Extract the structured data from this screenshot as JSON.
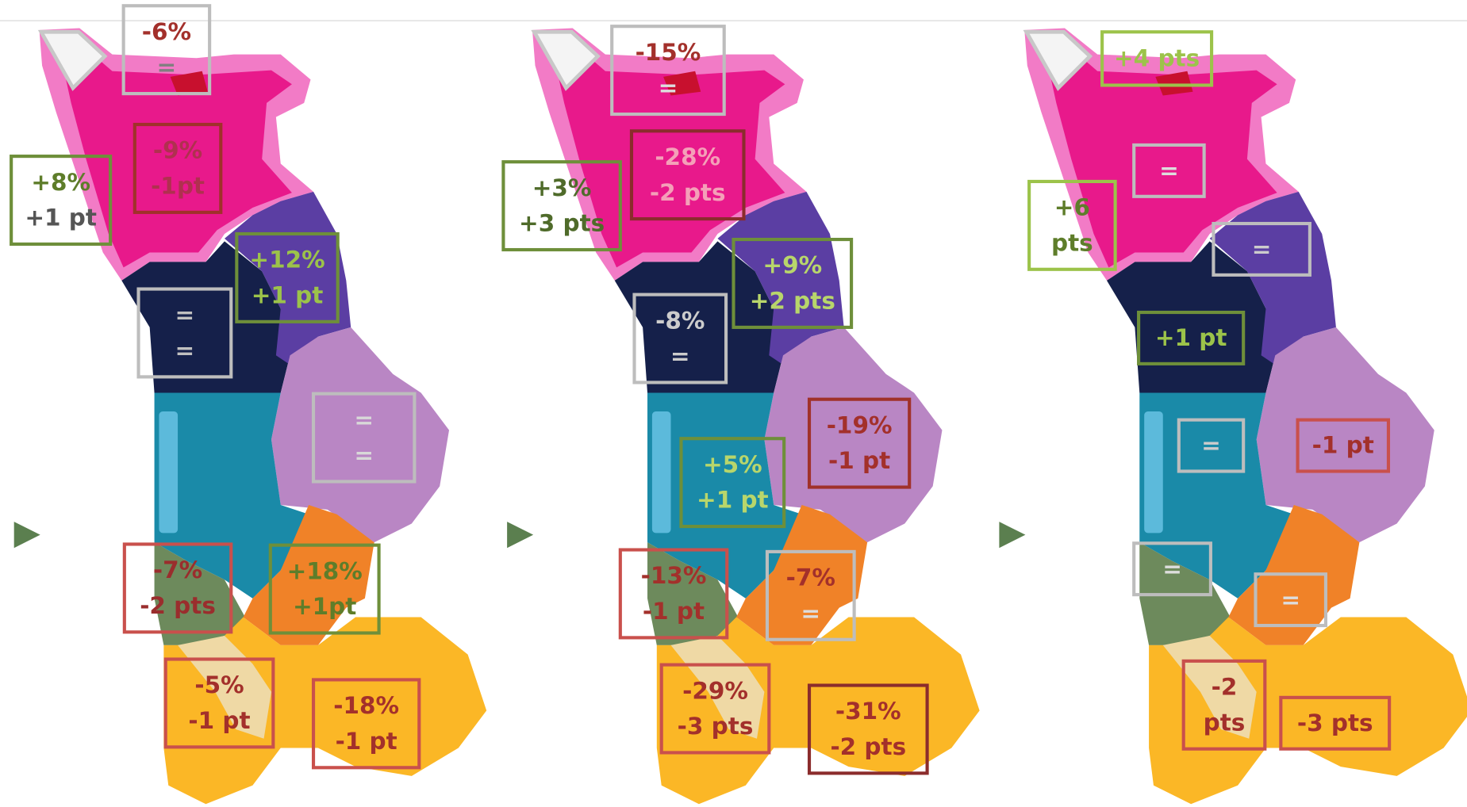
{
  "maps": [
    {
      "boxes": [
        {
          "color": "#bdbdbd",
          "lines": [
            {
              "text": "-6%",
              "color": "#a3302b"
            },
            {
              "text": "=",
              "color": "#7f7f7f"
            }
          ]
        },
        {
          "color": "#a0312a",
          "lines": [
            {
              "text": "-9%",
              "color": "#b0304f"
            },
            {
              "text": "-1pt",
              "color": "#b0304f"
            }
          ]
        },
        {
          "color": "#6e8f3a",
          "lines": [
            {
              "text": "+8%",
              "color": "#5e7d2a"
            },
            {
              "text": "+1 pt",
              "color": "#555555"
            }
          ]
        },
        {
          "color": "#6e8f3a",
          "lines": [
            {
              "text": "+12%",
              "color": "#9cc34a"
            },
            {
              "text": "+1 pt",
              "color": "#9cc34a"
            }
          ]
        },
        {
          "color": "#bdbdbd",
          "lines": [
            {
              "text": "=",
              "color": "#c0c0c0"
            },
            {
              "text": "=",
              "color": "#c0c0c0"
            }
          ]
        },
        {
          "color": "#bdbdbd",
          "lines": [
            {
              "text": "=",
              "color": "#d8d8d8"
            },
            {
              "text": "=",
              "color": "#d8d8d8"
            }
          ]
        },
        {
          "color": "#c9504c",
          "lines": [
            {
              "text": "-7%",
              "color": "#9a2d2d"
            },
            {
              "text": "-2 pts",
              "color": "#9a2d2d"
            }
          ]
        },
        {
          "color": "#6e8f3a",
          "lines": [
            {
              "text": "+18%",
              "color": "#5e7d2a"
            },
            {
              "text": "+1pt",
              "color": "#5e7d2a"
            }
          ]
        },
        {
          "color": "#c9504c",
          "lines": [
            {
              "text": "-5%",
              "color": "#a3302b"
            },
            {
              "text": "-1 pt",
              "color": "#a3302b"
            }
          ]
        },
        {
          "color": "#c9504c",
          "lines": [
            {
              "text": "-18%",
              "color": "#a3302b"
            },
            {
              "text": "-1 pt",
              "color": "#a3302b"
            }
          ]
        }
      ]
    },
    {
      "boxes": [
        {
          "color": "#bdbdbd",
          "lines": [
            {
              "text": "-15%",
              "color": "#a3302b"
            },
            {
              "text": "=",
              "color": "#dddddd"
            }
          ]
        },
        {
          "color": "#8b2c2c",
          "lines": [
            {
              "text": "-28%",
              "color": "#f4a0b8"
            },
            {
              "text": "-2 pts",
              "color": "#f4a0b8"
            }
          ]
        },
        {
          "color": "#6e8f3a",
          "lines": [
            {
              "text": "+3%",
              "color": "#4f6b2a"
            },
            {
              "text": "+3 pts",
              "color": "#4f6b2a"
            }
          ]
        },
        {
          "color": "#6e8f3a",
          "lines": [
            {
              "text": "+9%",
              "color": "#b8d66b"
            },
            {
              "text": "+2 pts",
              "color": "#b8d66b"
            }
          ]
        },
        {
          "color": "#bdbdbd",
          "lines": [
            {
              "text": "-8%",
              "color": "#cccccc"
            },
            {
              "text": "=",
              "color": "#cccccc"
            }
          ]
        },
        {
          "color": "#a0312a",
          "lines": [
            {
              "text": "-19%",
              "color": "#a3302b"
            },
            {
              "text": "-1 pt",
              "color": "#a3302b"
            }
          ]
        },
        {
          "color": "#6e8f3a",
          "lines": [
            {
              "text": "+5%",
              "color": "#b8d66b"
            },
            {
              "text": "+1 pt",
              "color": "#b8d66b"
            }
          ]
        },
        {
          "color": "#c9504c",
          "lines": [
            {
              "text": "-13%",
              "color": "#a3302b"
            },
            {
              "text": "-1 pt",
              "color": "#a3302b"
            }
          ]
        },
        {
          "color": "#bdbdbd",
          "lines": [
            {
              "text": "-7%",
              "color": "#a3302b"
            },
            {
              "text": "=",
              "color": "#dddddd"
            }
          ]
        },
        {
          "color": "#c9504c",
          "lines": [
            {
              "text": "-29%",
              "color": "#a3302b"
            },
            {
              "text": "-3 pts",
              "color": "#a3302b"
            }
          ]
        },
        {
          "color": "#8b2c2c",
          "lines": [
            {
              "text": "-31%",
              "color": "#a3302b"
            },
            {
              "text": "-2 pts",
              "color": "#a3302b"
            }
          ]
        }
      ]
    },
    {
      "boxes": [
        {
          "color": "#9cc34a",
          "lines": [
            {
              "text": "+4 pts",
              "color": "#9cc34a"
            }
          ]
        },
        {
          "color": "#bdbdbd",
          "lines": [
            {
              "text": "=",
              "color": "#dddddd"
            }
          ]
        },
        {
          "color": "#9cc34a",
          "lines": [
            {
              "text": "+6",
              "color": "#5e7d2a"
            },
            {
              "text": "pts",
              "color": "#5e7d2a"
            }
          ]
        },
        {
          "color": "#bdbdbd",
          "lines": [
            {
              "text": "=",
              "color": "#cccccc"
            }
          ]
        },
        {
          "color": "#6e8f3a",
          "lines": [
            {
              "text": "+1 pt",
              "color": "#9cc34a"
            }
          ]
        },
        {
          "color": "#bdbdbd",
          "lines": [
            {
              "text": "=",
              "color": "#cccccc"
            }
          ]
        },
        {
          "color": "#c9504c",
          "lines": [
            {
              "text": "-1 pt",
              "color": "#a3302b"
            }
          ]
        },
        {
          "color": "#bdbdbd",
          "lines": [
            {
              "text": "=",
              "color": "#dddddd"
            }
          ]
        },
        {
          "color": "#bdbdbd",
          "lines": [
            {
              "text": "=",
              "color": "#dddddd"
            }
          ]
        },
        {
          "color": "#c9504c",
          "lines": [
            {
              "text": "-2",
              "color": "#a3302b"
            },
            {
              "text": "pts",
              "color": "#a3302b"
            }
          ]
        },
        {
          "color": "#c9504c",
          "lines": [
            {
              "text": "-3 pts",
              "color": "#a3302b"
            }
          ]
        }
      ]
    }
  ]
}
